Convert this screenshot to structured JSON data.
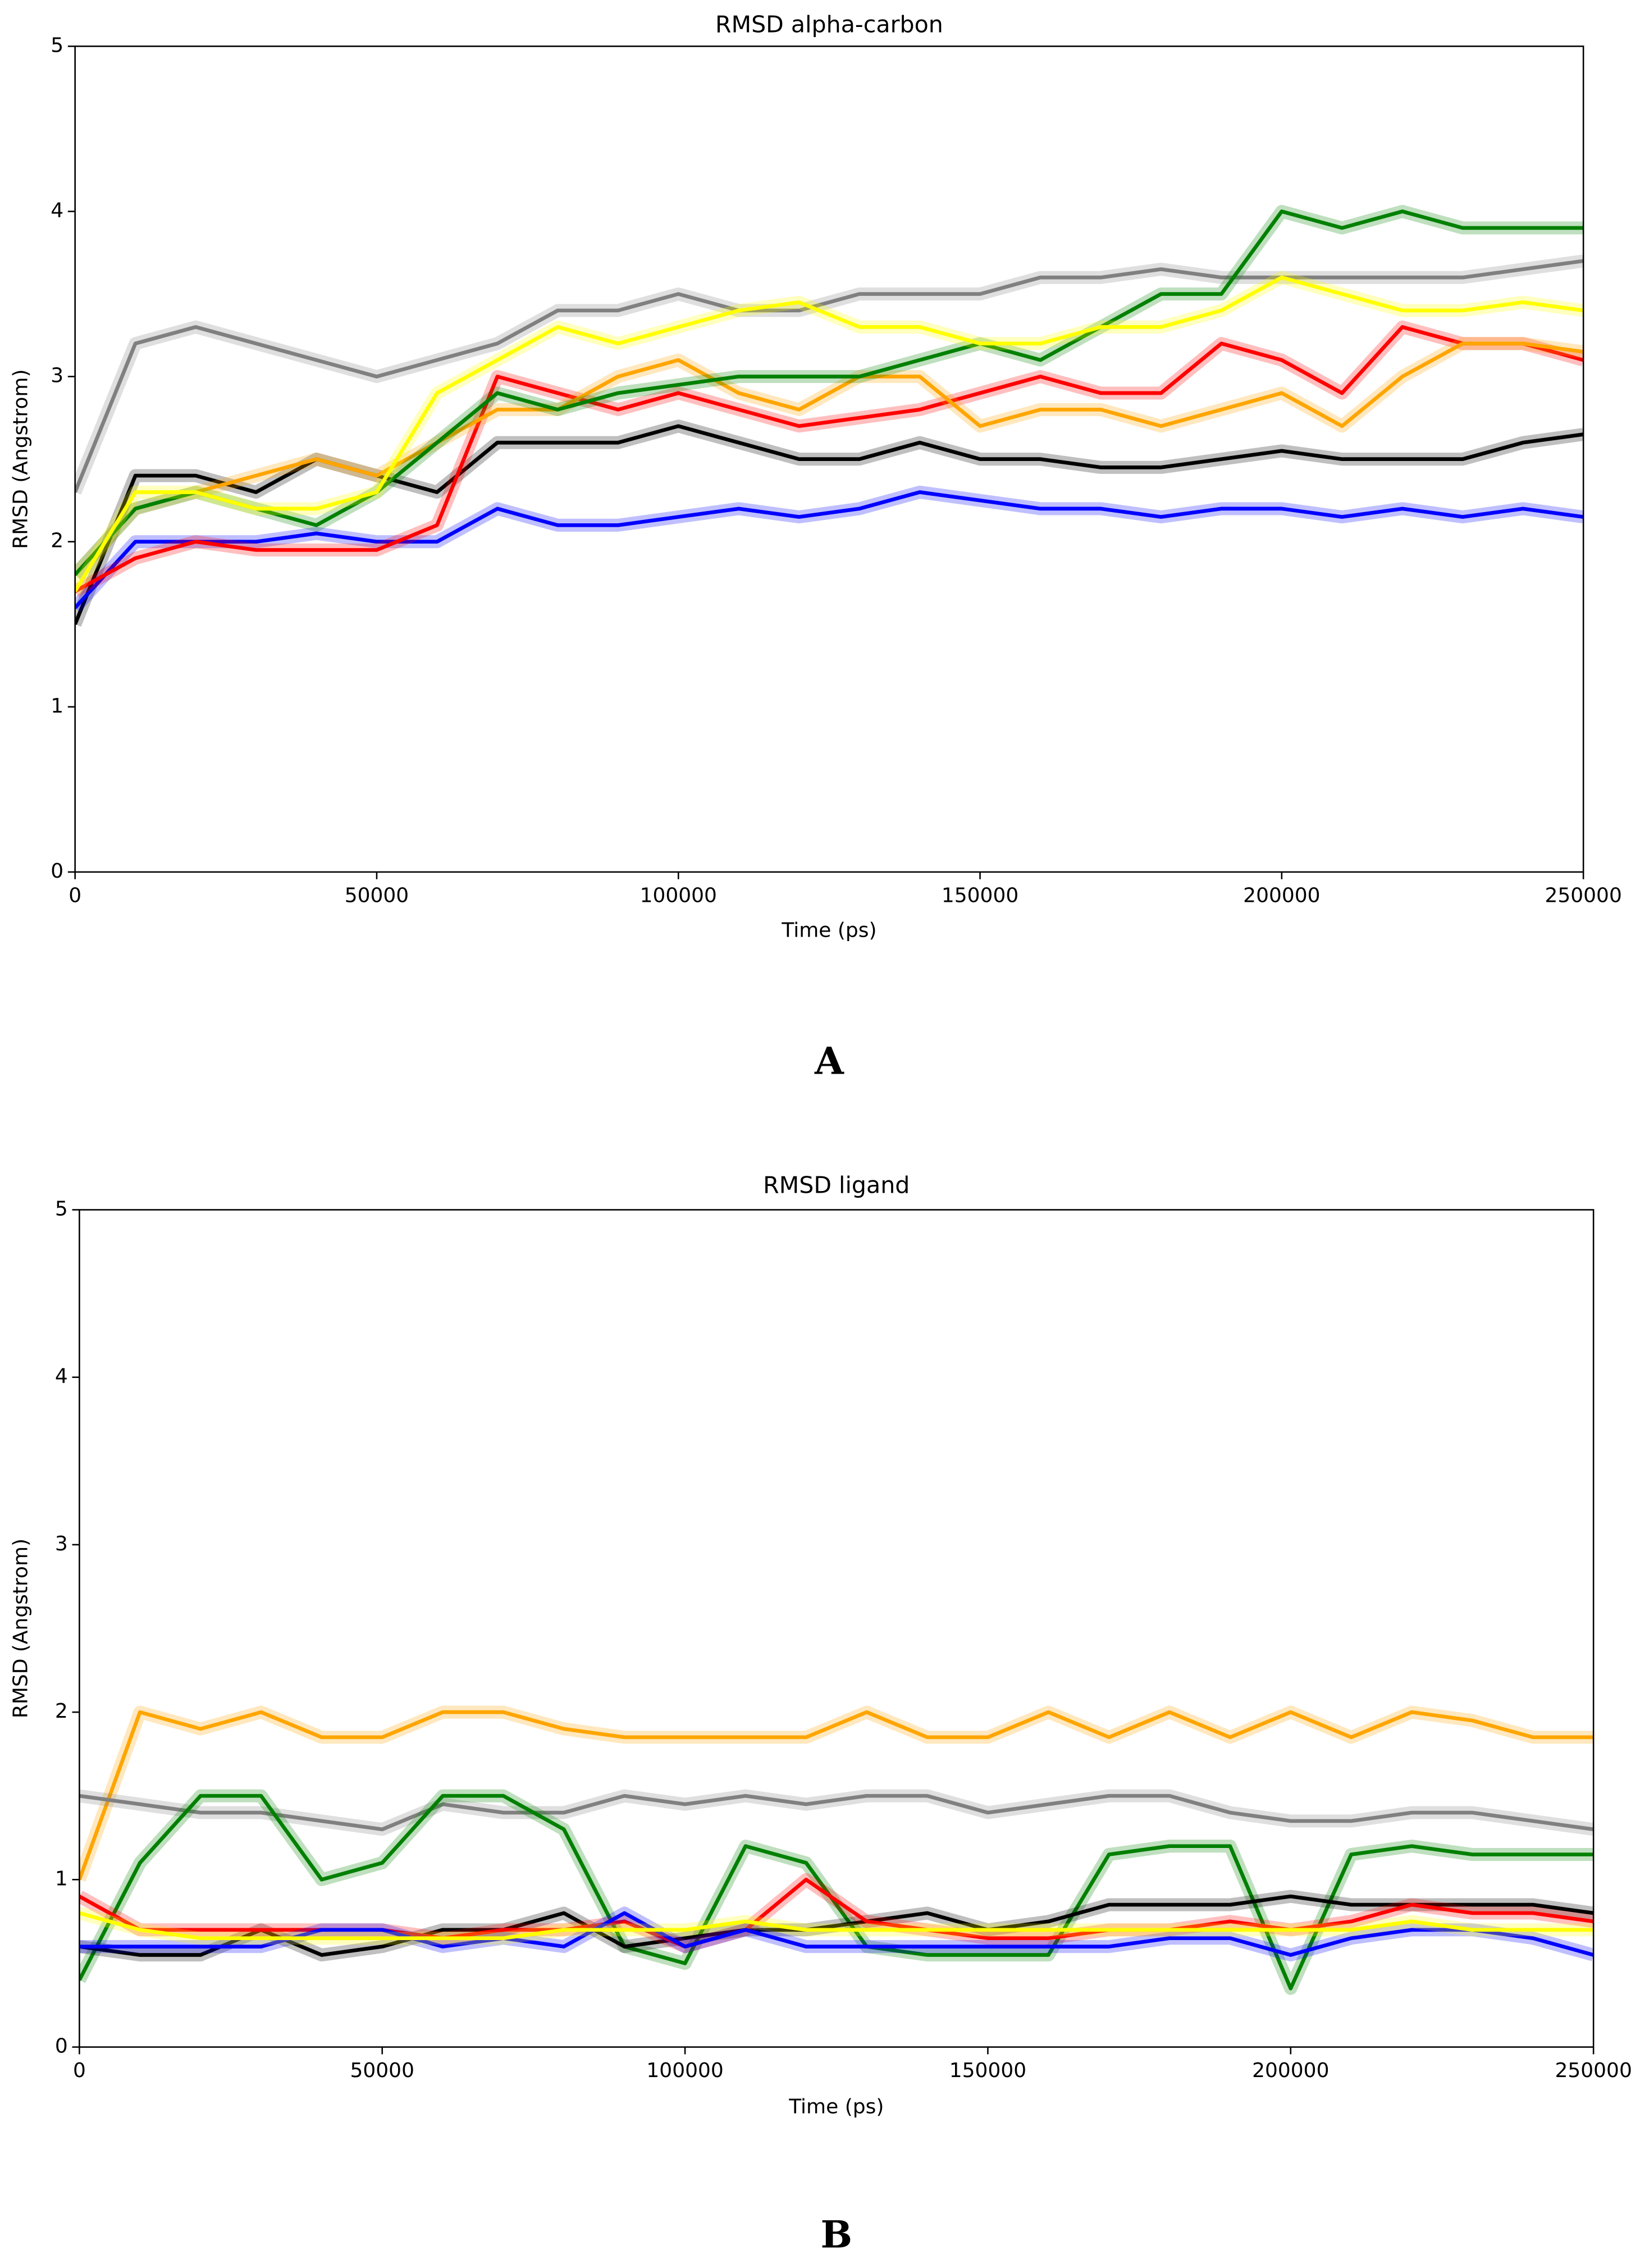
{
  "chart_data": [
    {
      "type": "line",
      "title": "RMSD alpha-carbon",
      "xlabel": "Time (ps)",
      "ylabel": "RMSD (Angstrom)",
      "panel": "A",
      "xlim": [
        0,
        250000
      ],
      "ylim": [
        0,
        5
      ],
      "xticks": [
        0,
        50000,
        100000,
        150000,
        200000,
        250000
      ],
      "yticks": [
        0,
        1,
        2,
        3,
        4,
        5
      ],
      "x": [
        0,
        10000,
        20000,
        30000,
        40000,
        50000,
        60000,
        70000,
        80000,
        90000,
        100000,
        110000,
        120000,
        130000,
        140000,
        150000,
        160000,
        170000,
        180000,
        190000,
        200000,
        210000,
        220000,
        230000,
        240000,
        250000
      ],
      "series": [
        {
          "color": "#808080",
          "values": [
            2.3,
            3.2,
            3.3,
            3.2,
            3.1,
            3.0,
            3.1,
            3.2,
            3.4,
            3.4,
            3.5,
            3.4,
            3.4,
            3.5,
            3.5,
            3.5,
            3.6,
            3.6,
            3.65,
            3.6,
            3.6,
            3.6,
            3.6,
            3.6,
            3.65,
            3.7
          ]
        },
        {
          "color": "#000000",
          "values": [
            1.5,
            2.4,
            2.4,
            2.3,
            2.5,
            2.4,
            2.3,
            2.6,
            2.6,
            2.6,
            2.7,
            2.6,
            2.5,
            2.5,
            2.6,
            2.5,
            2.5,
            2.45,
            2.45,
            2.5,
            2.55,
            2.5,
            2.5,
            2.5,
            2.6,
            2.65
          ]
        },
        {
          "color": "#0000ff",
          "values": [
            1.6,
            2.0,
            2.0,
            2.0,
            2.05,
            2.0,
            2.0,
            2.2,
            2.1,
            2.1,
            2.15,
            2.2,
            2.15,
            2.2,
            2.3,
            2.25,
            2.2,
            2.2,
            2.15,
            2.2,
            2.2,
            2.15,
            2.2,
            2.15,
            2.2,
            2.15
          ]
        },
        {
          "color": "#ff0000",
          "values": [
            1.7,
            1.9,
            2.0,
            1.95,
            1.95,
            1.95,
            2.1,
            3.0,
            2.9,
            2.8,
            2.9,
            2.8,
            2.7,
            2.75,
            2.8,
            2.9,
            3.0,
            2.9,
            2.9,
            3.2,
            3.1,
            2.9,
            3.3,
            3.2,
            3.2,
            3.1
          ]
        },
        {
          "color": "#ffa500",
          "values": [
            1.8,
            2.2,
            2.3,
            2.4,
            2.5,
            2.4,
            2.6,
            2.8,
            2.8,
            3.0,
            3.1,
            2.9,
            2.8,
            3.0,
            3.0,
            2.7,
            2.8,
            2.8,
            2.7,
            2.8,
            2.9,
            2.7,
            3.0,
            3.2,
            3.2,
            3.15
          ]
        },
        {
          "color": "#008000",
          "values": [
            1.8,
            2.2,
            2.3,
            2.2,
            2.1,
            2.3,
            2.6,
            2.9,
            2.8,
            2.9,
            2.95,
            3.0,
            3.0,
            3.0,
            3.1,
            3.2,
            3.1,
            3.3,
            3.5,
            3.5,
            4.0,
            3.9,
            4.0,
            3.9,
            3.9,
            3.9
          ]
        },
        {
          "color": "#ffff00",
          "values": [
            1.7,
            2.3,
            2.3,
            2.2,
            2.2,
            2.3,
            2.9,
            3.1,
            3.3,
            3.2,
            3.3,
            3.4,
            3.45,
            3.3,
            3.3,
            3.2,
            3.2,
            3.3,
            3.3,
            3.4,
            3.6,
            3.5,
            3.4,
            3.4,
            3.45,
            3.4
          ]
        }
      ]
    },
    {
      "type": "line",
      "title": "RMSD ligand",
      "xlabel": "Time (ps)",
      "ylabel": "RMSD (Angstrom)",
      "panel": "B",
      "xlim": [
        0,
        250000
      ],
      "ylim": [
        0,
        5
      ],
      "xticks": [
        0,
        50000,
        100000,
        150000,
        200000,
        250000
      ],
      "yticks": [
        0,
        1,
        2,
        3,
        4,
        5
      ],
      "x": [
        0,
        10000,
        20000,
        30000,
        40000,
        50000,
        60000,
        70000,
        80000,
        90000,
        100000,
        110000,
        120000,
        130000,
        140000,
        150000,
        160000,
        170000,
        180000,
        190000,
        200000,
        210000,
        220000,
        230000,
        240000,
        250000
      ],
      "series": [
        {
          "color": "#ffa500",
          "values": [
            1.0,
            2.0,
            1.9,
            2.0,
            1.85,
            1.85,
            2.0,
            2.0,
            1.9,
            1.85,
            1.85,
            1.85,
            1.85,
            2.0,
            1.85,
            1.85,
            2.0,
            1.85,
            2.0,
            1.85,
            2.0,
            1.85,
            2.0,
            1.95,
            1.85,
            1.85
          ]
        },
        {
          "color": "#808080",
          "values": [
            1.5,
            1.45,
            1.4,
            1.4,
            1.35,
            1.3,
            1.45,
            1.4,
            1.4,
            1.5,
            1.45,
            1.5,
            1.45,
            1.5,
            1.5,
            1.4,
            1.45,
            1.5,
            1.5,
            1.4,
            1.35,
            1.35,
            1.4,
            1.4,
            1.35,
            1.3
          ]
        },
        {
          "color": "#008000",
          "values": [
            0.4,
            1.1,
            1.5,
            1.5,
            1.0,
            1.1,
            1.5,
            1.5,
            1.3,
            0.6,
            0.5,
            1.2,
            1.1,
            0.6,
            0.55,
            0.55,
            0.55,
            1.15,
            1.2,
            1.2,
            0.35,
            1.15,
            1.2,
            1.15,
            1.15,
            1.15
          ]
        },
        {
          "color": "#000000",
          "values": [
            0.6,
            0.55,
            0.55,
            0.7,
            0.55,
            0.6,
            0.7,
            0.7,
            0.8,
            0.6,
            0.65,
            0.7,
            0.7,
            0.75,
            0.8,
            0.7,
            0.75,
            0.85,
            0.85,
            0.85,
            0.9,
            0.85,
            0.85,
            0.85,
            0.85,
            0.8
          ]
        },
        {
          "color": "#ff0000",
          "values": [
            0.9,
            0.7,
            0.7,
            0.7,
            0.7,
            0.7,
            0.65,
            0.7,
            0.7,
            0.75,
            0.6,
            0.7,
            1.0,
            0.75,
            0.7,
            0.65,
            0.65,
            0.7,
            0.7,
            0.75,
            0.7,
            0.75,
            0.85,
            0.8,
            0.8,
            0.75
          ]
        },
        {
          "color": "#0000ff",
          "values": [
            0.6,
            0.6,
            0.6,
            0.6,
            0.7,
            0.7,
            0.6,
            0.65,
            0.6,
            0.8,
            0.6,
            0.7,
            0.6,
            0.6,
            0.6,
            0.6,
            0.6,
            0.6,
            0.65,
            0.65,
            0.55,
            0.65,
            0.7,
            0.7,
            0.65,
            0.55
          ]
        },
        {
          "color": "#ffff00",
          "values": [
            0.8,
            0.7,
            0.65,
            0.65,
            0.65,
            0.65,
            0.65,
            0.65,
            0.7,
            0.7,
            0.7,
            0.75,
            0.7,
            0.7,
            0.7,
            0.7,
            0.7,
            0.7,
            0.7,
            0.7,
            0.7,
            0.7,
            0.75,
            0.7,
            0.7,
            0.7
          ]
        }
      ]
    }
  ]
}
